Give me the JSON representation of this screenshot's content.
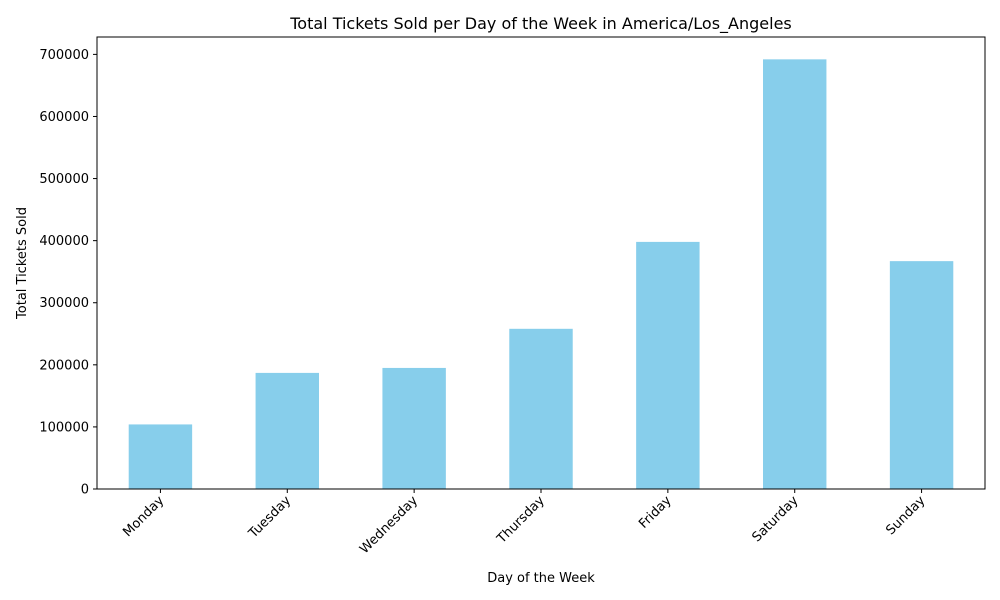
{
  "chart_data": {
    "type": "bar",
    "title": "Total Tickets Sold per Day of the Week in America/Los_Angeles",
    "xlabel": "Day of the Week",
    "ylabel": "Total Tickets Sold",
    "categories": [
      "Monday",
      "Tuesday",
      "Wednesday",
      "Thursday",
      "Friday",
      "Saturday",
      "Sunday"
    ],
    "values": [
      104000,
      187000,
      195000,
      258000,
      398000,
      692000,
      367000
    ],
    "ylim": [
      0,
      728000
    ],
    "yticks": [
      0,
      100000,
      200000,
      300000,
      400000,
      500000,
      600000,
      700000
    ],
    "ytick_labels": [
      "0",
      "100000",
      "200000",
      "300000",
      "400000",
      "500000",
      "600000",
      "700000"
    ],
    "bar_color": "#87ceeb",
    "grid": false,
    "legend": "none"
  }
}
